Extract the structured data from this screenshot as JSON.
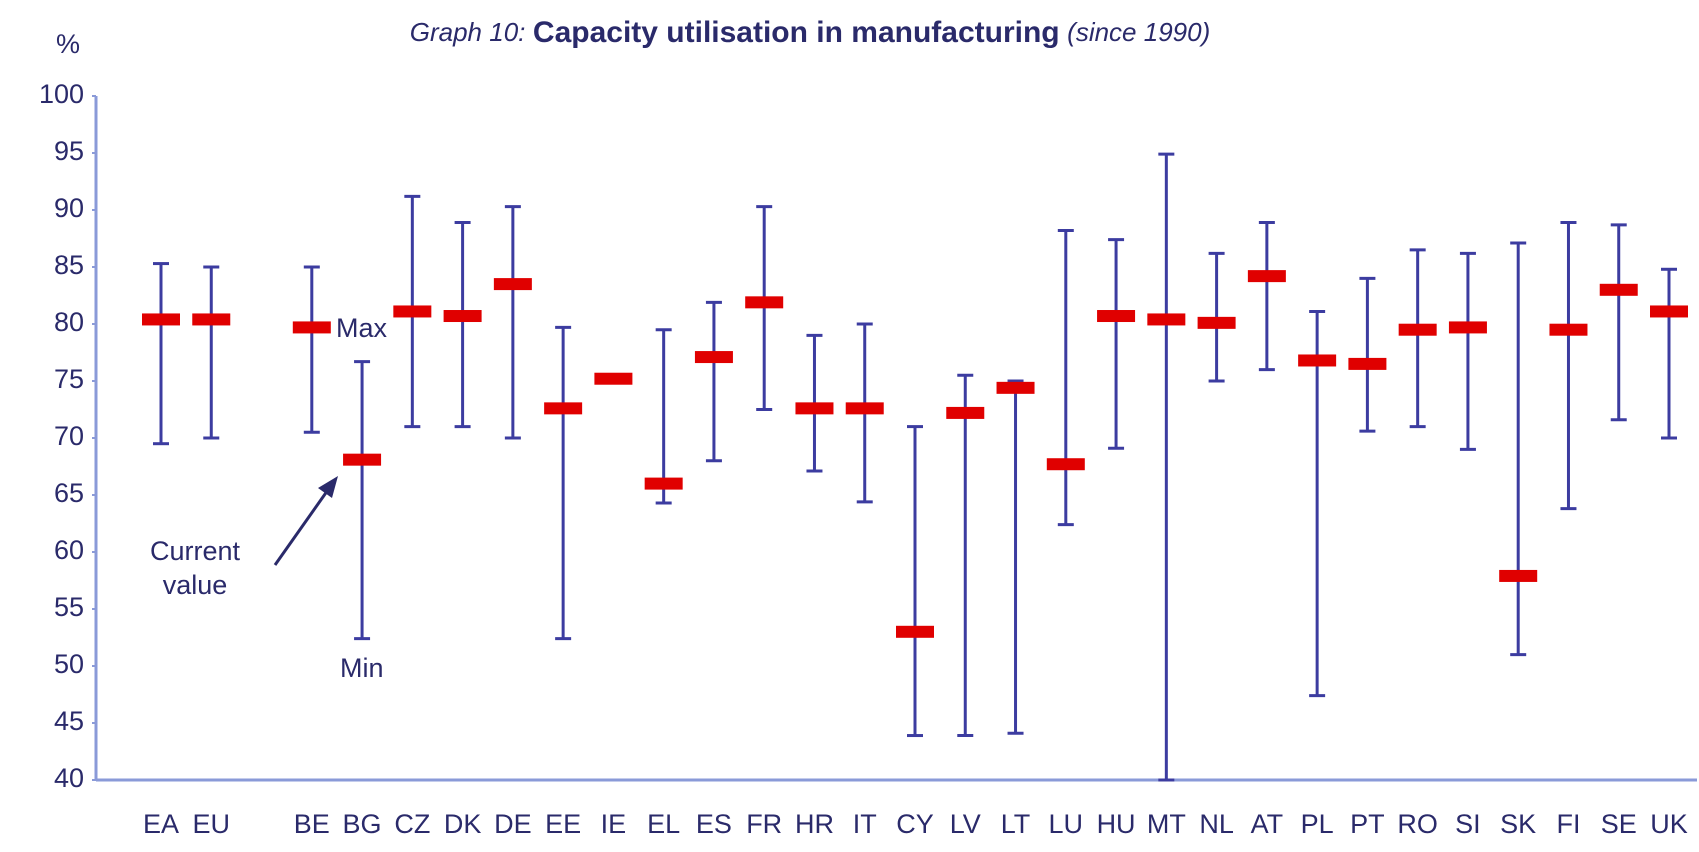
{
  "chart_data": {
    "type": "range",
    "title_prefix": "Graph 10:",
    "title": "Capacity utilisation in manufacturing",
    "title_suffix": "(since 1990)",
    "y_label": "%",
    "categories": [
      "EA",
      "EU",
      null,
      "BE",
      "BG",
      "CZ",
      "DK",
      "DE",
      "EE",
      "IE",
      "EL",
      "ES",
      "FR",
      "HR",
      "IT",
      "CY",
      "LV",
      "LT",
      "LU",
      "HU",
      "MT",
      "NL",
      "AT",
      "PL",
      "PT",
      "RO",
      "SI",
      "SK",
      "FI",
      "SE",
      "UK"
    ],
    "series": [
      {
        "name": "Max",
        "color": "#3c3ca0",
        "values": [
          85.3,
          85.0,
          null,
          85.0,
          76.7,
          91.2,
          88.9,
          90.3,
          79.7,
          null,
          79.5,
          81.9,
          90.3,
          79.0,
          80.0,
          71.0,
          75.5,
          75.0,
          88.2,
          87.4,
          94.9,
          86.2,
          88.9,
          81.1,
          84.0,
          86.5,
          86.2,
          87.1,
          88.9,
          88.7,
          84.8
        ]
      },
      {
        "name": "Min",
        "color": "#3c3ca0",
        "values": [
          69.5,
          70.0,
          null,
          70.5,
          52.4,
          71.0,
          71.0,
          70.0,
          52.4,
          null,
          64.3,
          68.0,
          72.5,
          67.1,
          64.4,
          43.9,
          43.9,
          44.1,
          62.4,
          69.1,
          40.0,
          75.0,
          76.0,
          47.4,
          70.6,
          71.0,
          69.0,
          51.0,
          63.8,
          71.6,
          70.0
        ]
      },
      {
        "name": "Current value",
        "color": "#e00000",
        "values": [
          80.4,
          80.4,
          null,
          79.7,
          68.1,
          81.1,
          80.7,
          83.5,
          72.6,
          75.2,
          66.0,
          77.1,
          81.9,
          72.6,
          72.6,
          53.0,
          72.2,
          74.4,
          67.7,
          80.7,
          80.4,
          80.1,
          84.2,
          76.8,
          76.5,
          79.5,
          79.7,
          57.9,
          79.5,
          83.0,
          81.1
        ]
      }
    ],
    "ylim": [
      40,
      100
    ],
    "yticks": [
      40,
      45,
      50,
      55,
      60,
      65,
      70,
      75,
      80,
      85,
      90,
      95,
      100
    ]
  }
}
